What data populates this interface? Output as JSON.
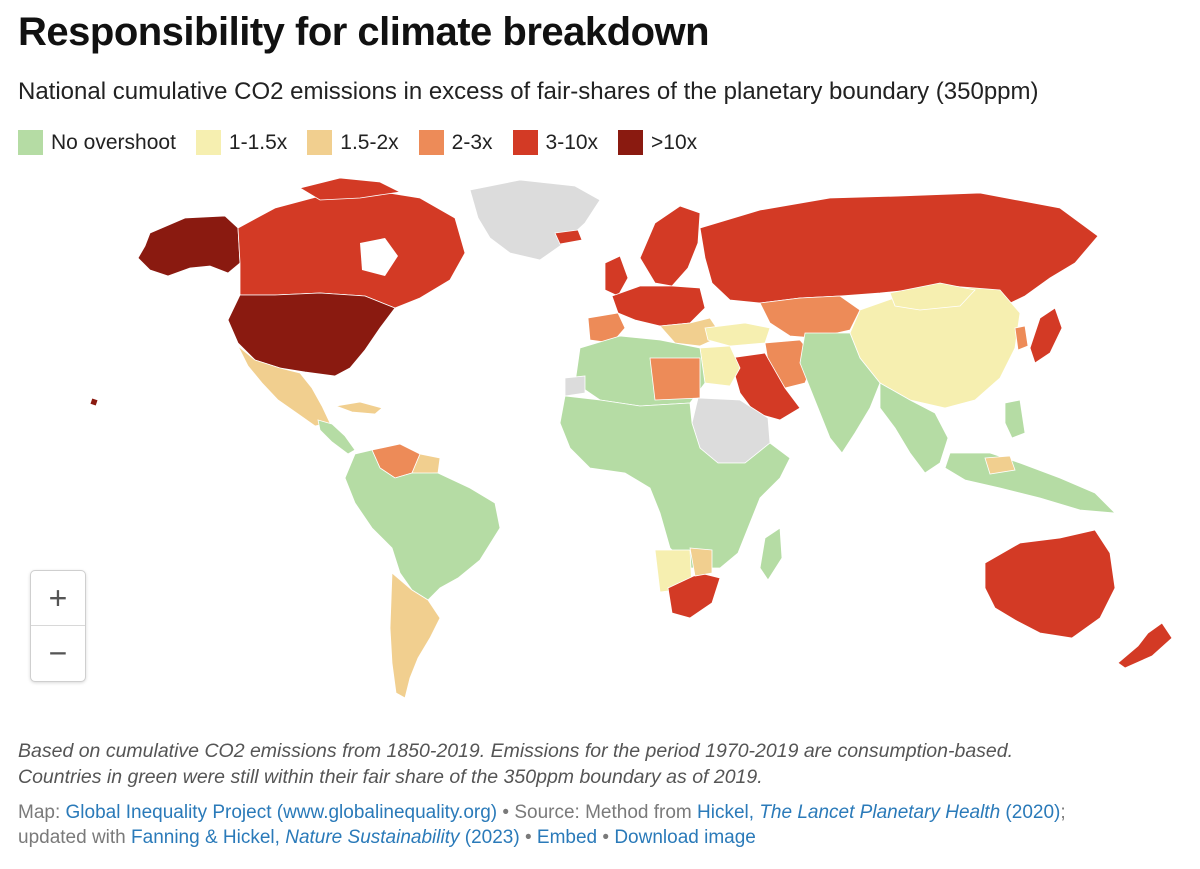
{
  "title": "Responsibility for climate breakdown",
  "subtitle": "National cumulative CO2 emissions in excess of fair-shares of the planetary boundary (350ppm)",
  "legend": [
    {
      "label": "No overshoot",
      "color": "#b5dca4"
    },
    {
      "label": "1-1.5x",
      "color": "#f6efb0"
    },
    {
      "label": "1.5-2x",
      "color": "#f1cf8f"
    },
    {
      "label": "2-3x",
      "color": "#ed8b58"
    },
    {
      "label": "3-10x",
      "color": "#d33a25"
    },
    {
      ">10x": null,
      "label": ">10x",
      "color": "#8a1a10"
    }
  ],
  "no_data_color": "#dcdcdc",
  "zoom": {
    "in": "+",
    "out": "−"
  },
  "note": {
    "line1": "Based on cumulative CO2 emissions from 1850-2019. Emissions for the period 1970-2019 are consumption-based.",
    "line2": "Countries in green were still within their fair share of the 350ppm boundary as of 2019."
  },
  "credits": {
    "map_prefix": "Map: ",
    "map_link": "Global Inequality Project (www.globalinequality.org)",
    "source_prefix": " • Source: Method from ",
    "source_link_a": "Hickel, ",
    "source_link_journal": "The Lancet Planetary Health",
    "source_link_b": " (2020)",
    "source_suffix": ";",
    "updated_prefix": "updated with ",
    "updated_link_a": "Fanning & Hickel, ",
    "updated_link_journal": "Nature Sustainability",
    "updated_link_b": " (2023)",
    "sep1": " • ",
    "embed": "Embed",
    "sep2": "  • ",
    "download": "Download image"
  }
}
